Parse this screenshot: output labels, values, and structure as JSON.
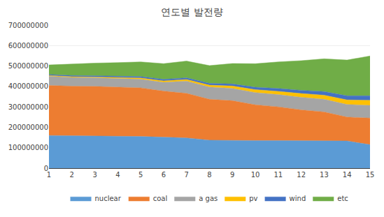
{
  "chart_data": {
    "type": "area",
    "title": "연도별 발전량",
    "stacked": true,
    "x": [
      1,
      2,
      3,
      4,
      5,
      6,
      7,
      8,
      9,
      10,
      11,
      12,
      13,
      14,
      15
    ],
    "series": [
      {
        "name": "nuclear",
        "color": "#5B9BD5",
        "values": [
          160000000,
          158000000,
          158000000,
          156000000,
          155000000,
          152000000,
          148000000,
          137000000,
          135000000,
          135000000,
          135000000,
          135000000,
          135000000,
          133000000,
          115000000
        ]
      },
      {
        "name": "coal",
        "color": "#ED7D31",
        "values": [
          245000000,
          243000000,
          242000000,
          240000000,
          238000000,
          225000000,
          218000000,
          200000000,
          195000000,
          175000000,
          165000000,
          150000000,
          140000000,
          117000000,
          130000000
        ]
      },
      {
        "name": "a gas",
        "color": "#A5A5A5",
        "values": [
          45000000,
          43000000,
          42000000,
          42000000,
          42000000,
          43000000,
          60000000,
          60000000,
          60000000,
          60000000,
          60000000,
          62000000,
          62000000,
          62000000,
          62000000
        ]
      },
      {
        "name": "pv",
        "color": "#FFC000",
        "values": [
          3000000,
          3500000,
          4000000,
          5000000,
          6000000,
          7000000,
          8000000,
          9000000,
          12000000,
          14000000,
          16000000,
          18000000,
          20000000,
          22000000,
          25000000
        ]
      },
      {
        "name": "wind",
        "color": "#4472C4",
        "values": [
          5000000,
          5500000,
          6000000,
          6500000,
          7000000,
          7500000,
          8000000,
          9000000,
          10000000,
          12000000,
          14000000,
          16000000,
          18000000,
          20000000,
          22000000
        ]
      },
      {
        "name": "etc",
        "color": "#70AD47",
        "values": [
          47000000,
          57000000,
          62000000,
          67000000,
          72000000,
          77000000,
          82000000,
          87000000,
          100000000,
          115000000,
          130000000,
          145000000,
          160000000,
          175000000,
          195000000
        ]
      }
    ],
    "xlim": [
      1,
      15
    ],
    "xticks": [
      1,
      2,
      3,
      4,
      5,
      6,
      7,
      8,
      9,
      10,
      11,
      12,
      13,
      14,
      15
    ],
    "ylim": [
      0,
      700000000
    ],
    "yticks": [
      0,
      100000000,
      200000000,
      300000000,
      400000000,
      500000000,
      600000000,
      700000000
    ],
    "grid": true,
    "legend": "bottom"
  }
}
